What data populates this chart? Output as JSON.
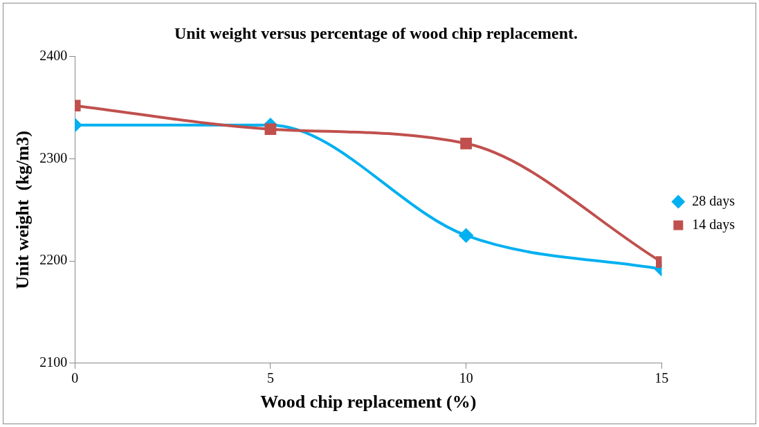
{
  "chart_data": {
    "type": "line",
    "title": "Unit weight versus percentage of wood chip replacement.",
    "xlabel": "Wood chip replacement (%)",
    "ylabel": "Unit weight  (kg/m3)",
    "x": [
      0,
      5,
      10,
      15
    ],
    "series": [
      {
        "name": "28 days",
        "color": "#00b0f0",
        "marker": "diamond",
        "values": [
          2333,
          2333,
          2225,
          2192
        ]
      },
      {
        "name": "14 days",
        "color": "#c0504d",
        "marker": "square",
        "values": [
          2352,
          2329,
          2315,
          2199
        ]
      }
    ],
    "xlim": [
      0,
      15
    ],
    "xticks": [
      0,
      5,
      10,
      15
    ],
    "ylim": [
      2100,
      2400
    ],
    "yticks": [
      2100,
      2200,
      2300,
      2400
    ],
    "grid": false,
    "legend": "right"
  }
}
